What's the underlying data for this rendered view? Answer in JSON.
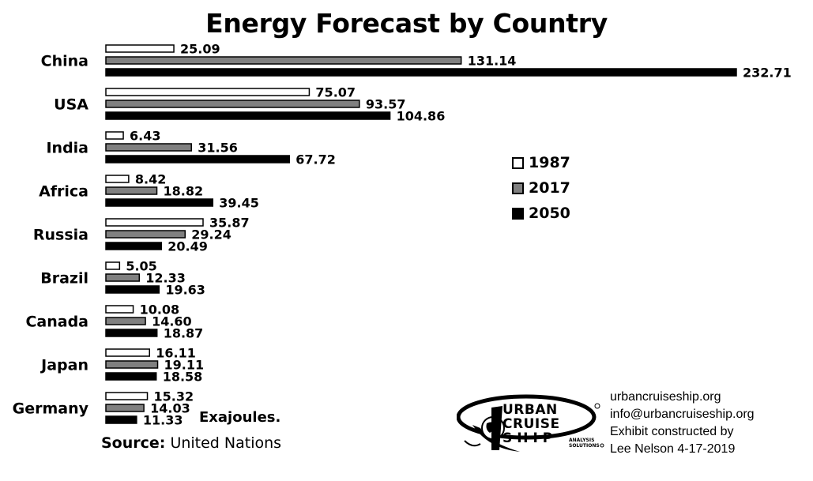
{
  "chart_data": {
    "type": "bar",
    "orientation": "horizontal",
    "title": "Energy Forecast by Country",
    "categories": [
      "China",
      "USA",
      "India",
      "Africa",
      "Russia",
      "Brazil",
      "Canada",
      "Japan",
      "Germany"
    ],
    "series": [
      {
        "name": "1987",
        "color": "#ffffff",
        "values": [
          25.09,
          75.07,
          6.43,
          8.42,
          35.87,
          5.05,
          10.08,
          16.11,
          15.32
        ],
        "labels": [
          "25.09",
          "75.07",
          "6.43",
          "8.42",
          "35.87",
          "5.05",
          "10.08",
          "16.11",
          "15.32"
        ]
      },
      {
        "name": "2017",
        "color": "#808080",
        "values": [
          131.14,
          93.57,
          31.56,
          18.82,
          29.24,
          12.33,
          14.6,
          19.11,
          14.03
        ],
        "labels": [
          "131.14",
          "93.57",
          "31.56",
          "18.82",
          "29.24",
          "12.33",
          "14.60",
          "19.11",
          "14.03"
        ]
      },
      {
        "name": "2050",
        "color": "#000000",
        "values": [
          232.71,
          104.86,
          67.72,
          39.45,
          20.49,
          19.63,
          18.87,
          18.58,
          11.33
        ],
        "labels": [
          "232.71",
          "104.86",
          "67.72",
          "39.45",
          "20.49",
          "19.63",
          "18.87",
          "18.58",
          "11.33"
        ]
      }
    ],
    "xlim": [
      0,
      232.71
    ],
    "grid": false,
    "legend_position": "right",
    "unit_note": "Exajoules."
  },
  "source": {
    "label": "Source:",
    "text": "United Nations"
  },
  "logo": {
    "line1": "URBAN",
    "line2": "CRUISE",
    "line3": "SHIP",
    "sub1": "ANALYSIS",
    "sub2": "SOLUTIONS"
  },
  "contact": {
    "website": "urbancruiseship.org",
    "email": "info@urbancruiseship.org",
    "credit": "Exhibit constructed by",
    "author_date": "Lee Nelson 4-17-2019"
  }
}
